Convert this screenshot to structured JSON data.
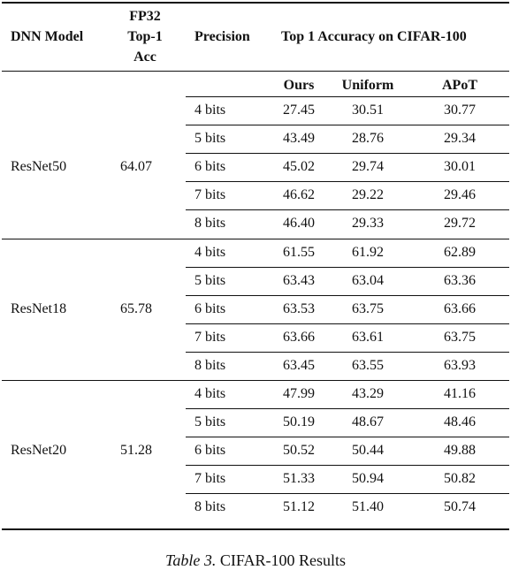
{
  "header": {
    "model": "DNN Model",
    "fp32": [
      "FP32",
      "Top-1",
      "Acc"
    ],
    "precision": "Precision",
    "group": "Top 1 Accuracy on CIFAR-100",
    "methods": [
      "Ours",
      "Uniform",
      "APoT"
    ]
  },
  "groups": [
    {
      "model": "ResNet50",
      "fp32": "64.07",
      "rows": [
        {
          "precision": "4 bits",
          "ours": "27.45",
          "uniform": "30.51",
          "apot": "30.77"
        },
        {
          "precision": "5 bits",
          "ours": "43.49",
          "uniform": "28.76",
          "apot": "29.34"
        },
        {
          "precision": "6 bits",
          "ours": "45.02",
          "uniform": "29.74",
          "apot": "30.01"
        },
        {
          "precision": "7 bits",
          "ours": "46.62",
          "uniform": "29.22",
          "apot": "29.46"
        },
        {
          "precision": "8 bits",
          "ours": "46.40",
          "uniform": "29.33",
          "apot": "29.72"
        }
      ]
    },
    {
      "model": "ResNet18",
      "fp32": "65.78",
      "rows": [
        {
          "precision": "4 bits",
          "ours": "61.55",
          "uniform": "61.92",
          "apot": "62.89"
        },
        {
          "precision": "5 bits",
          "ours": "63.43",
          "uniform": "63.04",
          "apot": "63.36"
        },
        {
          "precision": "6 bits",
          "ours": "63.53",
          "uniform": "63.75",
          "apot": "63.66"
        },
        {
          "precision": "7 bits",
          "ours": "63.66",
          "uniform": "63.61",
          "apot": "63.75"
        },
        {
          "precision": "8 bits",
          "ours": "63.45",
          "uniform": "63.55",
          "apot": "63.93"
        }
      ]
    },
    {
      "model": "ResNet20",
      "fp32": "51.28",
      "rows": [
        {
          "precision": "4 bits",
          "ours": "47.99",
          "uniform": "43.29",
          "apot": "41.16"
        },
        {
          "precision": "5 bits",
          "ours": "50.19",
          "uniform": "48.67",
          "apot": "48.46"
        },
        {
          "precision": "6 bits",
          "ours": "50.52",
          "uniform": "50.44",
          "apot": "49.88"
        },
        {
          "precision": "7 bits",
          "ours": "51.33",
          "uniform": "50.94",
          "apot": "50.82"
        },
        {
          "precision": "8 bits",
          "ours": "51.12",
          "uniform": "51.40",
          "apot": "50.74"
        }
      ]
    }
  ],
  "caption": {
    "label": "Table 3.",
    "text": "CIFAR-100 Results"
  }
}
